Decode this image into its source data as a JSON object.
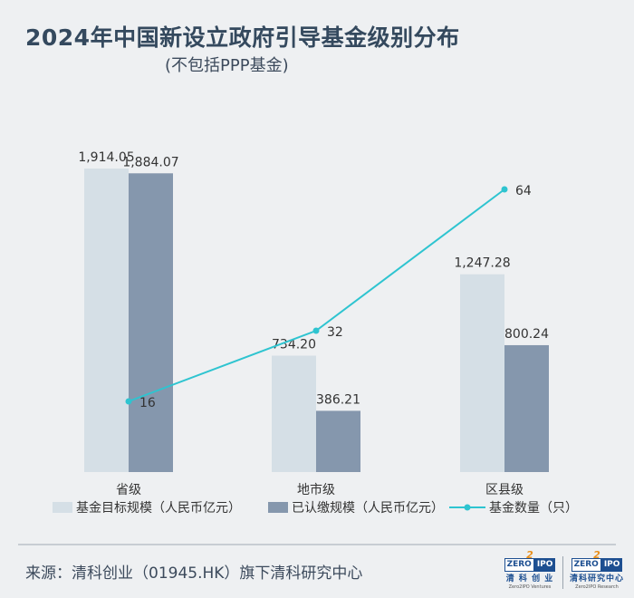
{
  "title": "2024年中国新设立政府引导基金级别分布",
  "subtitle": "(不包括PPP基金)",
  "source": "来源：清科创业（01945.HK）旗下清科研究中心",
  "logos": [
    {
      "badge_left": "ZERO",
      "badge_mid": "2",
      "badge_right": "IPO",
      "cn": "清 科 创 业",
      "en": "Zero2IPO Ventures"
    },
    {
      "badge_left": "ZERO",
      "badge_mid": "2",
      "badge_right": "IPO",
      "cn": "清科研究中心",
      "en": "Zero2IPO Research"
    }
  ],
  "colors": {
    "target_bar": "#d5dfe6",
    "paid_bar": "#8597ad",
    "count_line": "#2ec4d0",
    "text": "#333333"
  },
  "chart_data": {
    "type": "bar",
    "categories": [
      "省级",
      "地市级",
      "区县级"
    ],
    "series": [
      {
        "name": "基金目标规模（人民币亿元）",
        "kind": "bar",
        "values": [
          1914.05,
          734.2,
          1247.28
        ],
        "labels": [
          "1,914.05",
          "734.20",
          "1,247.28"
        ]
      },
      {
        "name": "已认缴规模（人民币亿元）",
        "kind": "bar",
        "values": [
          1884.07,
          386.21,
          800.24
        ],
        "labels": [
          "1,884.07",
          "386.21",
          "800.24"
        ]
      },
      {
        "name": "基金数量（只）",
        "kind": "line",
        "axis": "secondary",
        "values": [
          16,
          32,
          64
        ],
        "labels": [
          "16",
          "32",
          "64"
        ]
      }
    ],
    "ylim": [
      0,
      2000
    ],
    "y2lim": [
      0,
      80
    ],
    "grid": false,
    "legend": "bottom"
  }
}
